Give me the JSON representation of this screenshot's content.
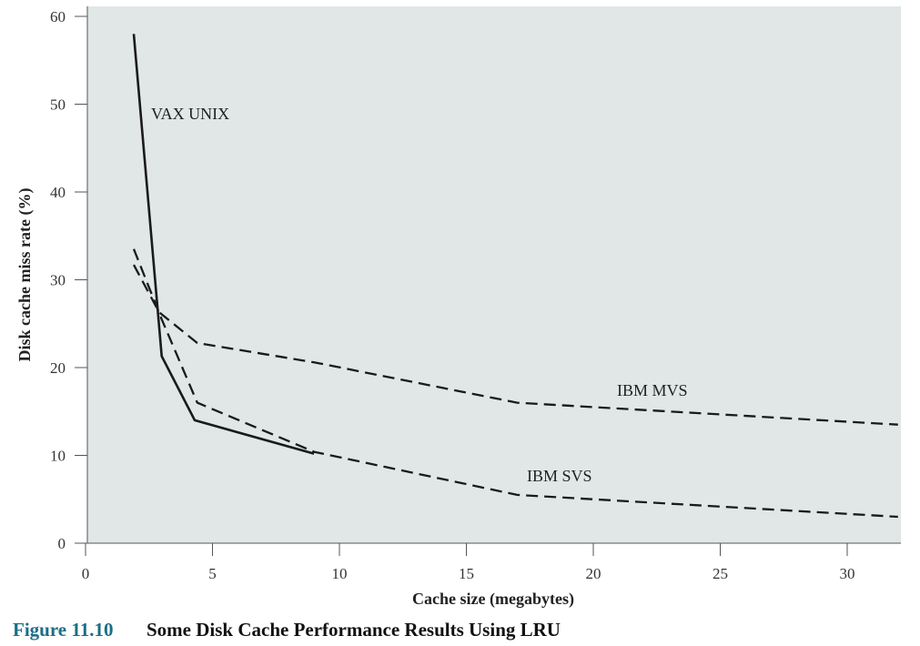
{
  "caption": {
    "number": "Figure 11.10",
    "title": "Some Disk Cache Performance Results Using LRU"
  },
  "colors": {
    "plot_background": "#e1e6e6",
    "line": "#1a1a1a",
    "caption_number": "#1a6e86"
  },
  "chart_data": {
    "type": "line",
    "title": "",
    "xlabel": "Cache size (megabytes)",
    "ylabel": "Disk cache miss rate (%)",
    "xlim": [
      0,
      32
    ],
    "ylim": [
      0,
      60
    ],
    "xticks": [
      0,
      5,
      10,
      15,
      20,
      25,
      30
    ],
    "yticks": [
      0,
      10,
      20,
      30,
      40,
      50,
      60
    ],
    "grid": false,
    "legend": "none (series labelled inline)",
    "series": [
      {
        "name": "VAX UNIX",
        "style": "solid",
        "x": [
          1.9,
          3.0,
          4.3,
          9.0
        ],
        "y": [
          58,
          21.3,
          14,
          10.2
        ]
      },
      {
        "name": "IBM MVS",
        "style": "dashed",
        "x": [
          1.9,
          2.9,
          4.4,
          9.0,
          17.0,
          32.0
        ],
        "y": [
          31.7,
          26.3,
          22.8,
          20.6,
          16.0,
          13.5
        ]
      },
      {
        "name": "IBM SVS",
        "style": "dashed",
        "x": [
          1.9,
          3.0,
          4.4,
          9.0,
          17.0,
          32.0
        ],
        "y": [
          33.5,
          25.5,
          16.0,
          10.4,
          5.5,
          3.0
        ]
      }
    ]
  }
}
